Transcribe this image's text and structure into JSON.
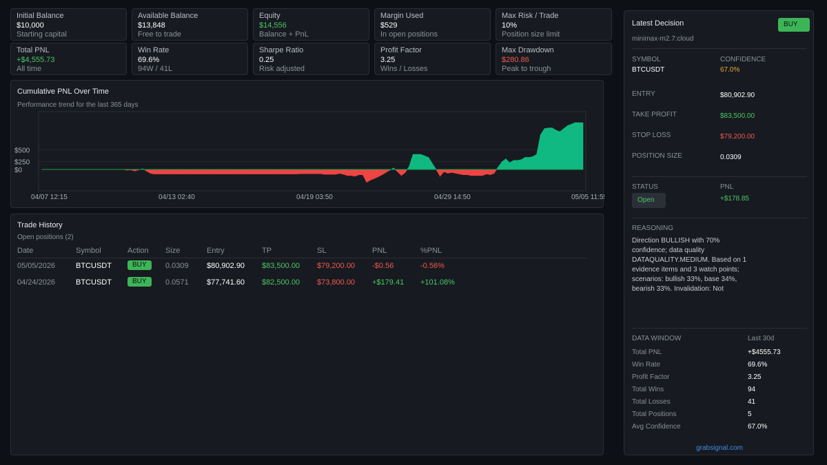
{
  "stats": [
    {
      "label": "Initial Balance",
      "value": "$10,000",
      "sub": "Starting capital",
      "color": "white"
    },
    {
      "label": "Available Balance",
      "value": "$13,848",
      "sub": "Free to trade",
      "color": "white"
    },
    {
      "label": "Equity",
      "value": "$14,556",
      "sub": "Balance + PnL",
      "color": "green"
    },
    {
      "label": "Margin Used",
      "value": "$529",
      "sub": "In open positions",
      "color": "white"
    },
    {
      "label": "Max Risk / Trade",
      "value": "10%",
      "sub": "Position size limit",
      "color": "white"
    },
    {
      "label": "Total PNL",
      "value": "+$4,555.73",
      "sub": "All time",
      "color": "green"
    },
    {
      "label": "Win Rate",
      "value": "69.6%",
      "sub": "94W / 41L",
      "color": "white"
    },
    {
      "label": "Sharpe Ratio",
      "value": "0.25",
      "sub": "Risk adjusted",
      "color": "white"
    },
    {
      "label": "Profit Factor",
      "value": "3.25",
      "sub": "Wins / Losses",
      "color": "white"
    },
    {
      "label": "Max Drawdown",
      "value": "$280.86",
      "sub": "Peak to trough",
      "color": "red"
    }
  ],
  "chart_panel": {
    "title": "Cumulative PNL Over Time",
    "subtitle": "Performance trend for the last 365 days"
  },
  "chart_data": {
    "type": "area",
    "title": "Cumulative PNL Over Time",
    "y_tick_labels": [
      "$500",
      "$250",
      "$0"
    ],
    "y_ticks": [
      500,
      250,
      0
    ],
    "ylim": [
      -100,
      280
    ],
    "x_tick_labels": [
      "04/07 12:15",
      "04/13 02:40",
      "04/19 03:50",
      "04/29 14:50",
      "05/05 11:55"
    ],
    "grid": true,
    "positive_color": "#10b981",
    "negative_color": "#ef4444",
    "values": [
      0,
      0,
      0,
      0,
      0,
      0,
      0,
      0,
      0,
      0,
      0,
      0,
      0,
      0,
      0,
      0,
      0,
      0,
      0,
      0,
      0,
      0,
      -5,
      -3,
      -10,
      -3,
      5,
      -10,
      -25,
      -30,
      -30,
      -30,
      -30,
      -30,
      -30,
      -30,
      -30,
      -30,
      -30,
      -30,
      -30,
      -30,
      -30,
      -30,
      -30,
      -30,
      -30,
      -30,
      -30,
      -30,
      -30,
      -30,
      -30,
      -30,
      -30,
      -30,
      -30,
      -30,
      -30,
      -30,
      -30,
      -30,
      -30,
      -30,
      -30,
      -30,
      -30,
      -28,
      -28,
      -28,
      -28,
      -28,
      -28,
      -32,
      -32,
      -32,
      -32,
      -26,
      -32,
      -40,
      -40,
      -45,
      -35,
      -35,
      -85,
      -70,
      -60,
      -48,
      -35,
      -20,
      -5,
      10,
      -15,
      -40,
      -20,
      20,
      100,
      100,
      100,
      90,
      80,
      40,
      0,
      -45,
      -15,
      -25,
      -20,
      -25,
      -30,
      -35,
      -35,
      -40,
      -40,
      -40,
      -40,
      -30,
      -35,
      -25,
      15,
      50,
      70,
      45,
      60,
      60,
      65,
      80,
      80,
      85,
      100,
      230,
      270,
      275,
      275,
      260,
      250,
      270,
      290,
      300,
      310,
      310,
      310
    ]
  },
  "trade_history": {
    "title": "Trade History",
    "subtitle": "Open positions (2)",
    "columns": [
      "Date",
      "Symbol",
      "Action",
      "Size",
      "Entry",
      "TP",
      "SL",
      "PNL",
      "%PNL"
    ],
    "rows": [
      {
        "date": "05/05/2026",
        "symbol": "BTCUSDT",
        "action": "BUY",
        "size": "0.0309",
        "entry": "$80,902.90",
        "tp": "$83,500.00",
        "sl": "$79,200.00",
        "pnl": "-$0.56",
        "pct": "-0.56%",
        "pnl_color": "red"
      },
      {
        "date": "04/24/2026",
        "symbol": "BTCUSDT",
        "action": "BUY",
        "size": "0.0571",
        "entry": "$77,741.60",
        "tp": "$82,500.00",
        "sl": "$73,800.00",
        "pnl": "+$179.41",
        "pct": "+101.08%",
        "pnl_color": "green"
      }
    ]
  },
  "decision": {
    "title": "Latest Decision",
    "badge": "BUY",
    "model": "minimax-m2.7:cloud",
    "symbol_label": "SYMBOL",
    "symbol": "BTCUSDT",
    "confidence_label": "CONFIDENCE",
    "confidence": "67.0%",
    "entry_label": "ENTRY",
    "entry": "$80,902.90",
    "tp_label": "TAKE PROFIT",
    "tp": "$83,500.00",
    "sl_label": "STOP LOSS",
    "sl": "$79,200.00",
    "size_label": "POSITION SIZE",
    "size": "0.0309",
    "status_label": "STATUS",
    "status": "Open",
    "pnl_label": "PNL",
    "pnl": "+$178.85",
    "reasoning_label": "REASONING",
    "reasoning": "Direction BULLISH with 70% confidence; data quality DATAQUALITY.MEDIUM. Based on 1 evidence items and 3 watch points; scenarios: bullish 33%, base 34%, bearish 33%. Invalidation: Not"
  },
  "data_window": {
    "label": "DATA WINDOW",
    "window": "Last 30d",
    "rows": [
      {
        "k": "Total PNL",
        "v": "+$4555.73"
      },
      {
        "k": "Win Rate",
        "v": "69.6%"
      },
      {
        "k": "Profit Factor",
        "v": "3.25"
      },
      {
        "k": "Total Wins",
        "v": "94"
      },
      {
        "k": "Total Losses",
        "v": "41"
      },
      {
        "k": "Total Positions",
        "v": "5"
      },
      {
        "k": "Avg Confidence",
        "v": "67.0%"
      }
    ],
    "footer_link": "grabsignal.com"
  }
}
